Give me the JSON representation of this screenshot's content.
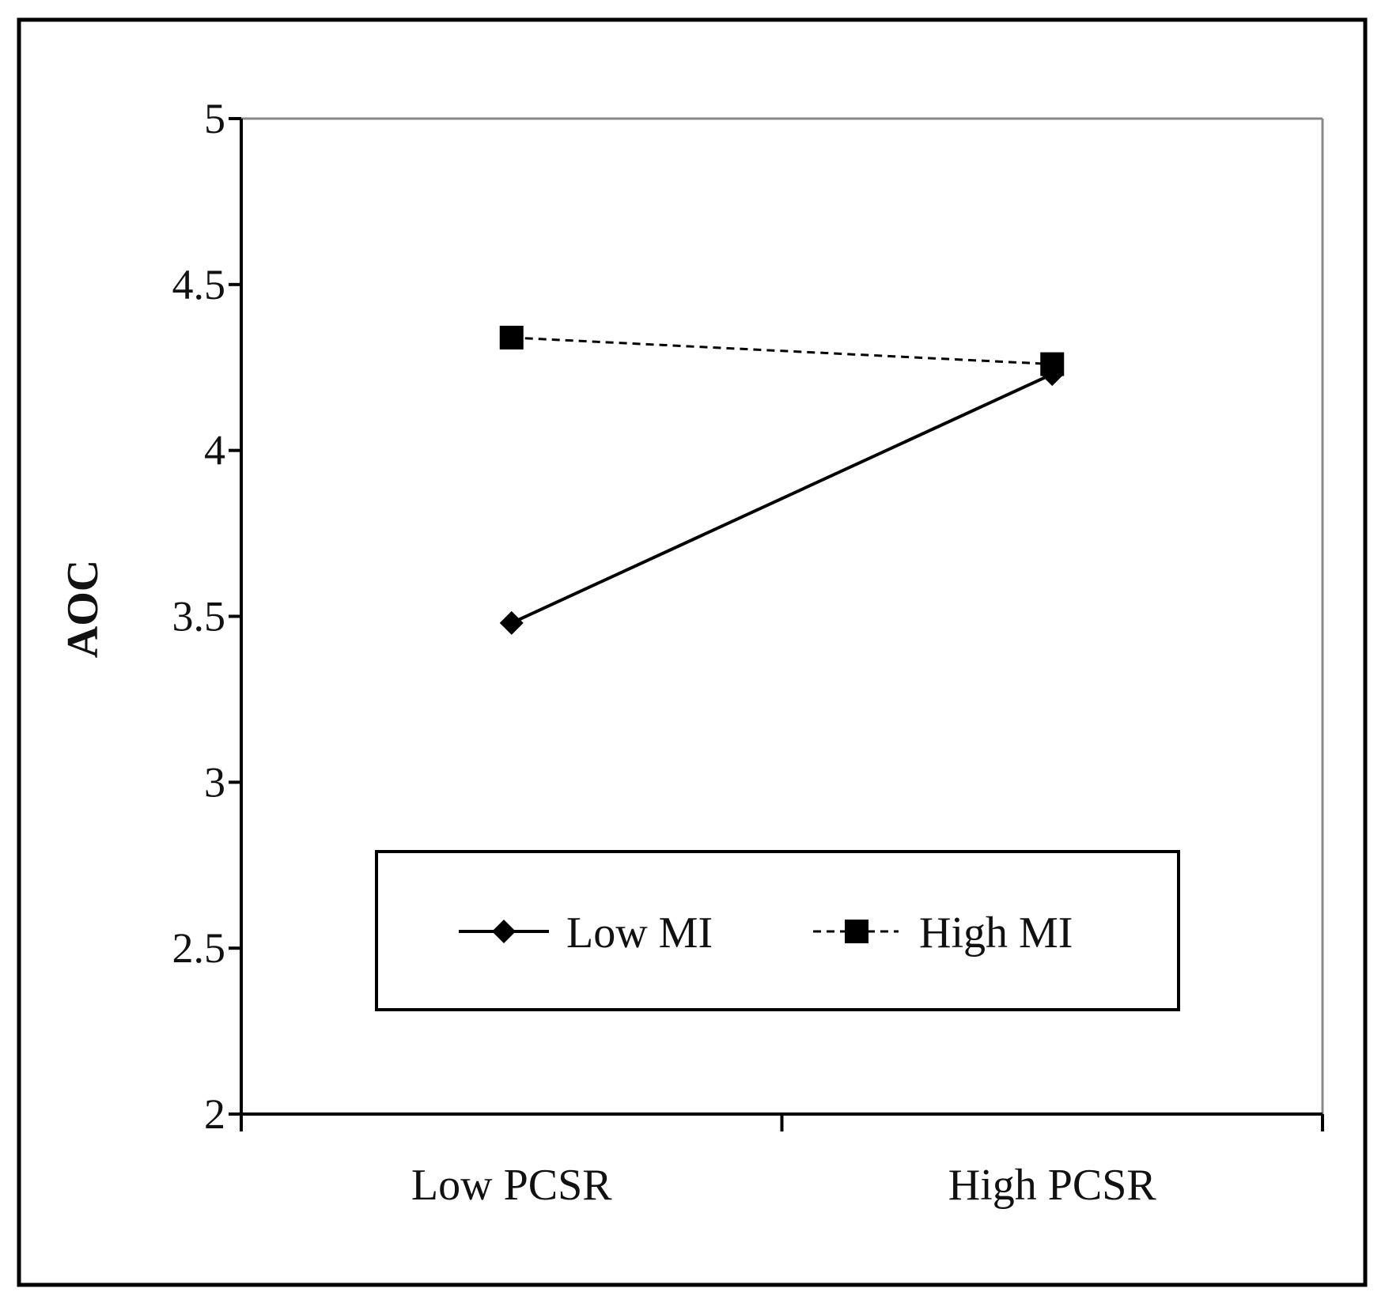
{
  "chart_data": {
    "type": "line",
    "title": "",
    "xlabel": "",
    "ylabel": "AOC",
    "categories": [
      "Low PCSR",
      "High PCSR"
    ],
    "ylim": [
      2,
      5
    ],
    "yticks": [
      "5",
      "4.5",
      "4",
      "3.5",
      "3",
      "2.5",
      "2"
    ],
    "grid": false,
    "legend_position": "lower-center",
    "series": [
      {
        "name": "Low MI",
        "values": [
          3.48,
          4.23
        ],
        "line_style": "solid",
        "marker": "diamond",
        "color": "#000000"
      },
      {
        "name": "High MI",
        "values": [
          4.34,
          4.26
        ],
        "line_style": "dashed",
        "marker": "square",
        "color": "#000000"
      }
    ]
  }
}
